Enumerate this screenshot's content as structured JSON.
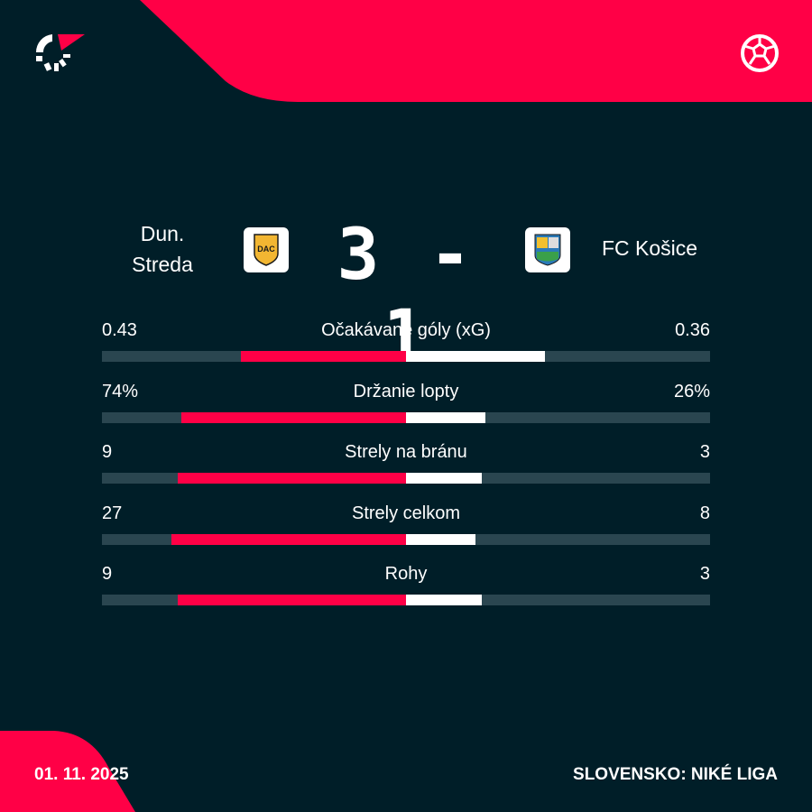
{
  "colors": {
    "background": "#001e28",
    "accent": "#ff0046",
    "track": "#2a4650",
    "away_bar": "#ffffff"
  },
  "header": {
    "logo_icon": "flashscore-logo",
    "sport_icon": "soccer-ball-icon"
  },
  "match": {
    "home": {
      "name_line1": "Dun.",
      "name_line2": "Streda",
      "crest": "DAC"
    },
    "away": {
      "name": "FC Košice",
      "crest": "FC Košice crest"
    },
    "score": "3 - 1"
  },
  "stats": [
    {
      "label": "Očakávané góly (xG)",
      "home": "0.43",
      "away": "0.36",
      "home_value": 0.43,
      "away_value": 0.36
    },
    {
      "label": "Držanie lopty",
      "home": "74%",
      "away": "26%",
      "home_value": 74,
      "away_value": 26
    },
    {
      "label": "Strely na bránu",
      "home": "9",
      "away": "3",
      "home_value": 9,
      "away_value": 3
    },
    {
      "label": "Strely celkom",
      "home": "27",
      "away": "8",
      "home_value": 27,
      "away_value": 8
    },
    {
      "label": "Rohy",
      "home": "9",
      "away": "3",
      "home_value": 9,
      "away_value": 3
    }
  ],
  "footer": {
    "date": "01. 11. 2025",
    "competition": "SLOVENSKO: NIKÉ LIGA"
  }
}
